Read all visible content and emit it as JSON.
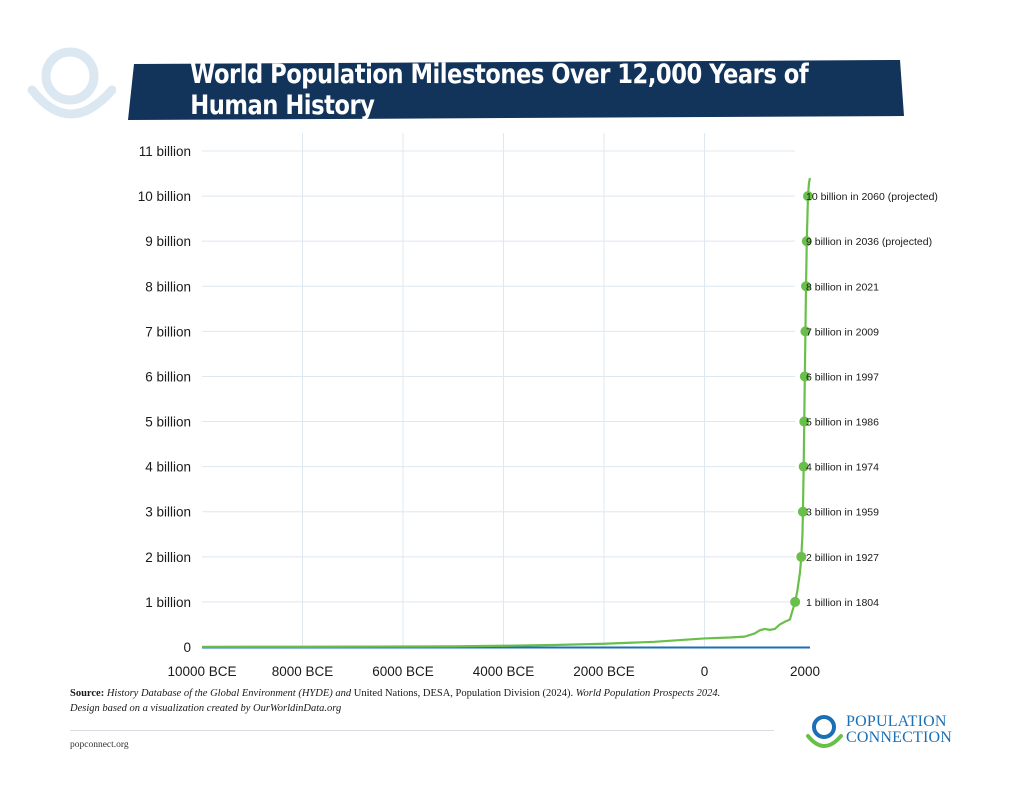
{
  "title": "World Population Milestones Over 12,000 Years of Human History",
  "chart_data": {
    "type": "line",
    "title": "World Population Milestones Over 12,000 Years of Human History",
    "xlabel": "",
    "ylabel": "",
    "xlim": [
      -10000,
      2100
    ],
    "ylim": [
      0,
      11000000000
    ],
    "x_ticks": [
      {
        "value": -10000,
        "label": "10000 BCE"
      },
      {
        "value": -8000,
        "label": "8000 BCE"
      },
      {
        "value": -6000,
        "label": "6000 BCE"
      },
      {
        "value": -4000,
        "label": "4000 BCE"
      },
      {
        "value": -2000,
        "label": "2000 BCE"
      },
      {
        "value": 0,
        "label": "0"
      },
      {
        "value": 2000,
        "label": "2000"
      }
    ],
    "y_ticks": [
      {
        "value": 0,
        "label": "0"
      },
      {
        "value": 1000000000,
        "label": "1 billion"
      },
      {
        "value": 2000000000,
        "label": "2 billion"
      },
      {
        "value": 3000000000,
        "label": "3 billion"
      },
      {
        "value": 4000000000,
        "label": "4 billion"
      },
      {
        "value": 5000000000,
        "label": "5 billion"
      },
      {
        "value": 6000000000,
        "label": "6 billion"
      },
      {
        "value": 7000000000,
        "label": "7 billion"
      },
      {
        "value": 8000000000,
        "label": "8 billion"
      },
      {
        "value": 9000000000,
        "label": "9 billion"
      },
      {
        "value": 10000000000,
        "label": "10 billion"
      },
      {
        "value": 11000000000,
        "label": "11 billion"
      }
    ],
    "grid": true,
    "series": [
      {
        "color": "#6abf4b",
        "points": [
          [
            -10000,
            4000000
          ],
          [
            -9000,
            5000000
          ],
          [
            -8000,
            6000000
          ],
          [
            -7000,
            8000000
          ],
          [
            -6000,
            11000000
          ],
          [
            -5000,
            14000000
          ],
          [
            -4000,
            27000000
          ],
          [
            -3000,
            45000000
          ],
          [
            -2000,
            72000000
          ],
          [
            -1000,
            115000000
          ],
          [
            0,
            190000000
          ],
          [
            500,
            210000000
          ],
          [
            800,
            230000000
          ],
          [
            1000,
            300000000
          ],
          [
            1100,
            370000000
          ],
          [
            1200,
            400000000
          ],
          [
            1300,
            380000000
          ],
          [
            1400,
            400000000
          ],
          [
            1500,
            500000000
          ],
          [
            1600,
            560000000
          ],
          [
            1700,
            610000000
          ],
          [
            1750,
            800000000
          ],
          [
            1804,
            1000000000
          ],
          [
            1850,
            1260000000
          ],
          [
            1900,
            1650000000
          ],
          [
            1927,
            2000000000
          ],
          [
            1950,
            2500000000
          ],
          [
            1959,
            3000000000
          ],
          [
            1974,
            4000000000
          ],
          [
            1986,
            5000000000
          ],
          [
            1997,
            6000000000
          ],
          [
            2009,
            7000000000
          ],
          [
            2021,
            8000000000
          ],
          [
            2036,
            9000000000
          ],
          [
            2060,
            10000000000
          ],
          [
            2080,
            10300000000
          ],
          [
            2100,
            10400000000
          ]
        ]
      }
    ],
    "milestones": [
      {
        "year": 1804,
        "value": 1000000000,
        "label": "1 billion in 1804"
      },
      {
        "year": 1927,
        "value": 2000000000,
        "label": "2 billion in 1927"
      },
      {
        "year": 1959,
        "value": 3000000000,
        "label": "3 billion in 1959"
      },
      {
        "year": 1974,
        "value": 4000000000,
        "label": "4 billion in 1974"
      },
      {
        "year": 1986,
        "value": 5000000000,
        "label": "5 billion in 1986"
      },
      {
        "year": 1997,
        "value": 6000000000,
        "label": "6 billion in 1997"
      },
      {
        "year": 2009,
        "value": 7000000000,
        "label": "7 billion in 2009"
      },
      {
        "year": 2021,
        "value": 8000000000,
        "label": "8 billion in 2021"
      },
      {
        "year": 2036,
        "value": 9000000000,
        "label": "9 billion in 2036 (projected)"
      },
      {
        "year": 2060,
        "value": 10000000000,
        "label": "10 billion in 2060 (projected)"
      }
    ]
  },
  "source": {
    "label": "Source:",
    "part1": "History Database of the Global Environment (HYDE) and",
    "part2": " United Nations, DESA, Population Division (2024). ",
    "part3": "World Population Prospects 2024.",
    "line2": "Design based on a visualization created by OurWorldinData.org"
  },
  "footer_url": "popconnect.org",
  "logo": {
    "line1": "POPULATION",
    "line2": "CONNECTION"
  },
  "colors": {
    "banner": "#12335a",
    "line": "#6abf4b",
    "baseline": "#1a6fb5",
    "grid": "#dde8f0"
  }
}
